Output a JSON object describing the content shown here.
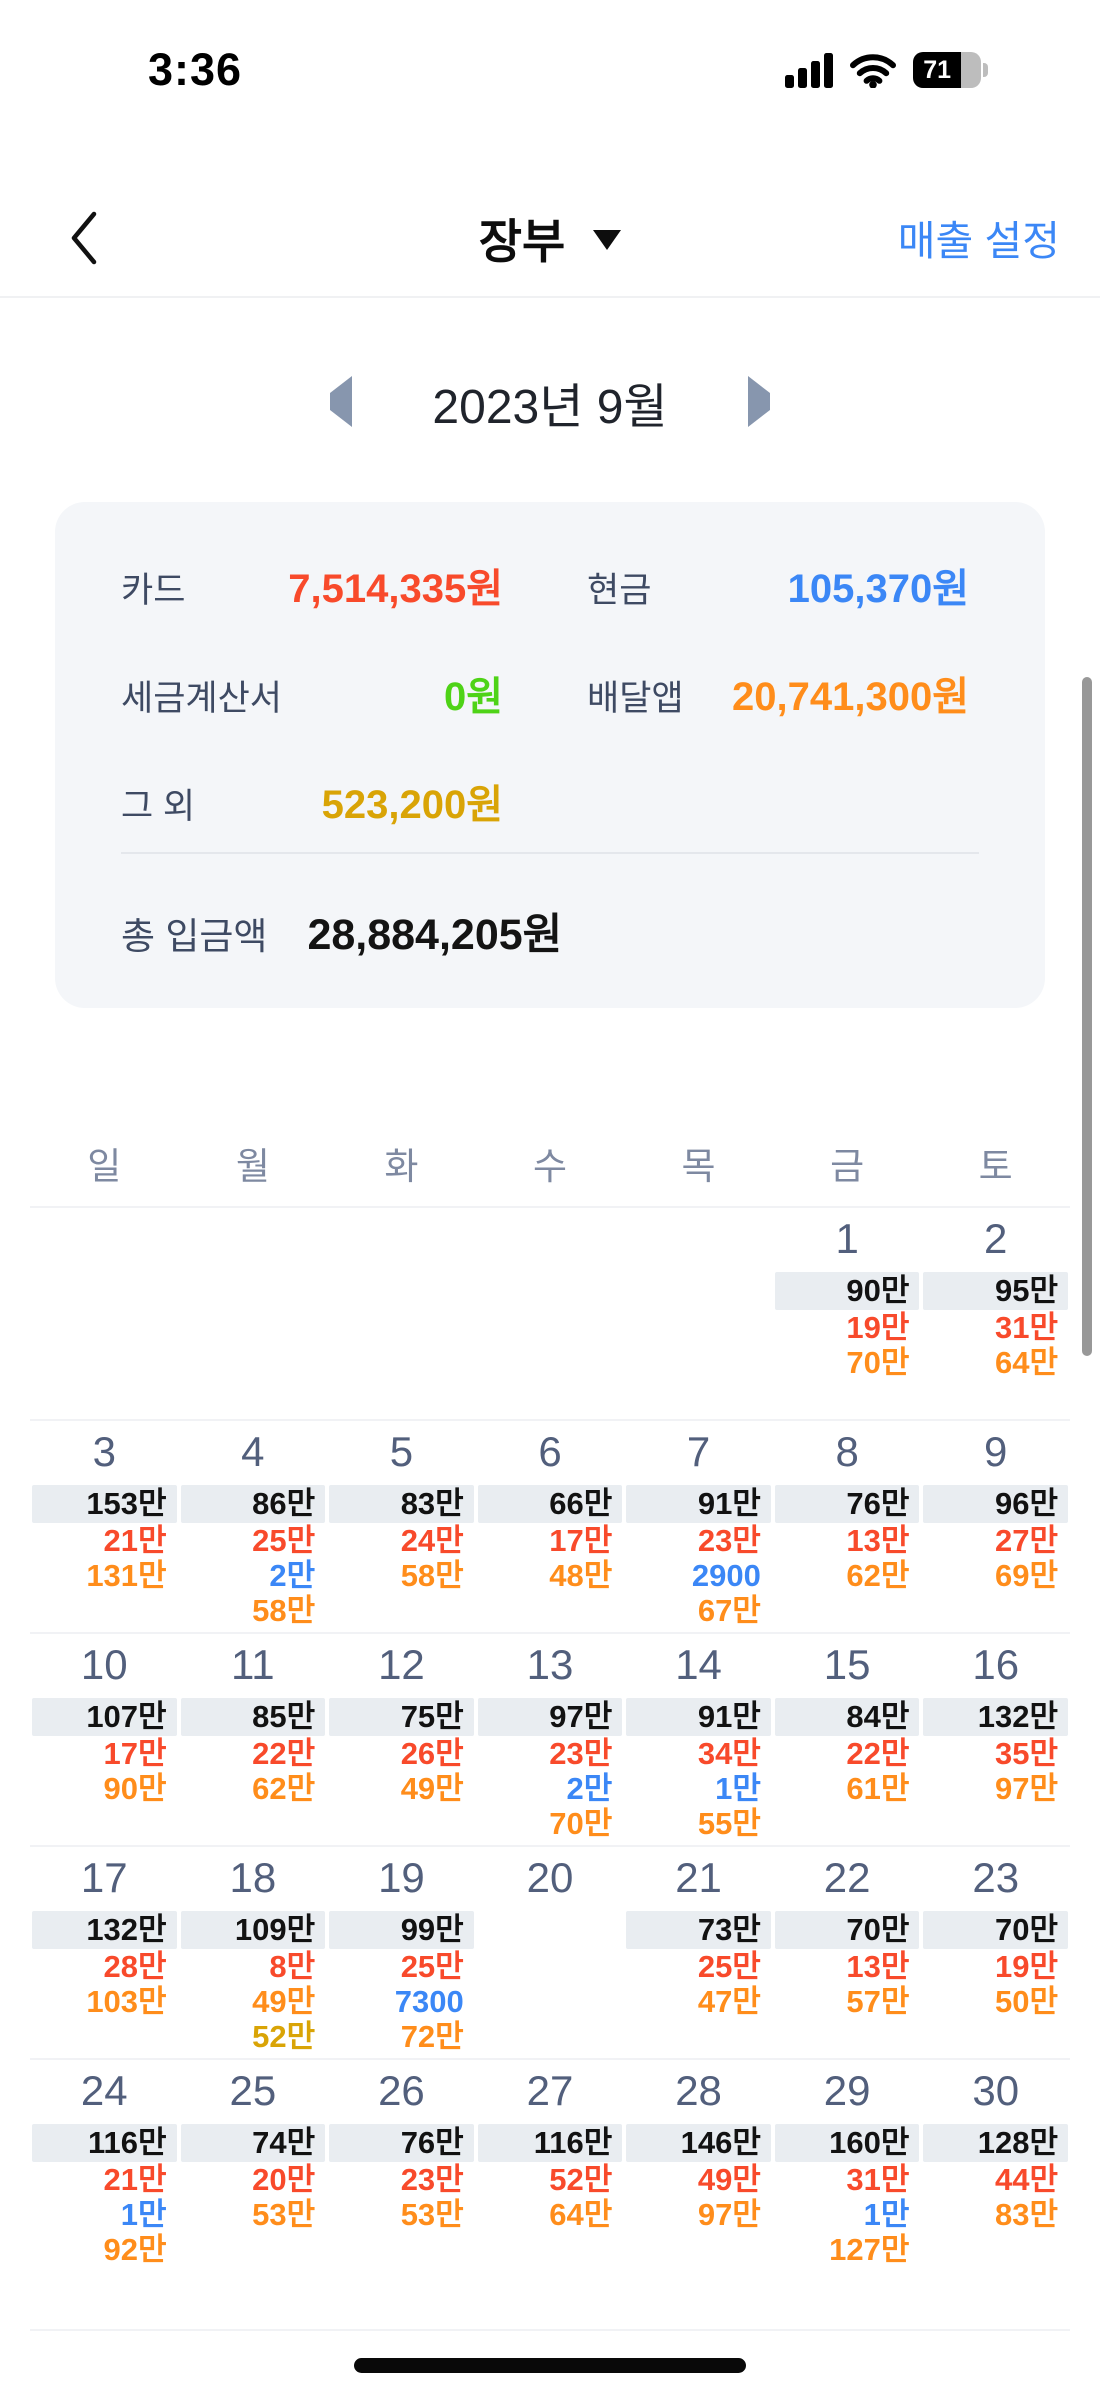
{
  "status_bar": {
    "time": "3:36",
    "battery_percent": "71"
  },
  "nav": {
    "title": "장부",
    "action": "매출 설정"
  },
  "month_selector": {
    "label": "2023년 9월"
  },
  "summary": {
    "items": [
      {
        "label": "카드",
        "value": "7,514,335원",
        "type": "card"
      },
      {
        "label": "현금",
        "value": "105,370원",
        "type": "cash"
      },
      {
        "label": "세금계산서",
        "value": "0원",
        "type": "tax"
      },
      {
        "label": "배달앱",
        "value": "20,741,300원",
        "type": "delivery"
      },
      {
        "label": "그 외",
        "value": "523,200원",
        "type": "other"
      }
    ],
    "total_label": "총 입금액",
    "total_value": "28,884,205원"
  },
  "calendar": {
    "weekdays": [
      "일",
      "월",
      "화",
      "수",
      "목",
      "금",
      "토"
    ],
    "weeks": [
      [
        {
          "day": "",
          "values": []
        },
        {
          "day": "",
          "values": []
        },
        {
          "day": "",
          "values": []
        },
        {
          "day": "",
          "values": []
        },
        {
          "day": "",
          "values": []
        },
        {
          "day": "1",
          "values": [
            {
              "text": "90만",
              "type": "total"
            },
            {
              "text": "19만",
              "type": "card"
            },
            {
              "text": "70만",
              "type": "delivery"
            }
          ]
        },
        {
          "day": "2",
          "values": [
            {
              "text": "95만",
              "type": "total"
            },
            {
              "text": "31만",
              "type": "card"
            },
            {
              "text": "64만",
              "type": "delivery"
            }
          ]
        }
      ],
      [
        {
          "day": "3",
          "values": [
            {
              "text": "153만",
              "type": "total"
            },
            {
              "text": "21만",
              "type": "card"
            },
            {
              "text": "131만",
              "type": "delivery"
            }
          ]
        },
        {
          "day": "4",
          "values": [
            {
              "text": "86만",
              "type": "total"
            },
            {
              "text": "25만",
              "type": "card"
            },
            {
              "text": "2만",
              "type": "cash"
            },
            {
              "text": "58만",
              "type": "delivery"
            }
          ]
        },
        {
          "day": "5",
          "values": [
            {
              "text": "83만",
              "type": "total"
            },
            {
              "text": "24만",
              "type": "card"
            },
            {
              "text": "58만",
              "type": "delivery"
            }
          ]
        },
        {
          "day": "6",
          "values": [
            {
              "text": "66만",
              "type": "total"
            },
            {
              "text": "17만",
              "type": "card"
            },
            {
              "text": "48만",
              "type": "delivery"
            }
          ]
        },
        {
          "day": "7",
          "values": [
            {
              "text": "91만",
              "type": "total"
            },
            {
              "text": "23만",
              "type": "card"
            },
            {
              "text": "2900",
              "type": "cash"
            },
            {
              "text": "67만",
              "type": "delivery"
            }
          ]
        },
        {
          "day": "8",
          "values": [
            {
              "text": "76만",
              "type": "total"
            },
            {
              "text": "13만",
              "type": "card"
            },
            {
              "text": "62만",
              "type": "delivery"
            }
          ]
        },
        {
          "day": "9",
          "values": [
            {
              "text": "96만",
              "type": "total"
            },
            {
              "text": "27만",
              "type": "card"
            },
            {
              "text": "69만",
              "type": "delivery"
            }
          ]
        }
      ],
      [
        {
          "day": "10",
          "values": [
            {
              "text": "107만",
              "type": "total"
            },
            {
              "text": "17만",
              "type": "card"
            },
            {
              "text": "90만",
              "type": "delivery"
            }
          ]
        },
        {
          "day": "11",
          "values": [
            {
              "text": "85만",
              "type": "total"
            },
            {
              "text": "22만",
              "type": "card"
            },
            {
              "text": "62만",
              "type": "delivery"
            }
          ]
        },
        {
          "day": "12",
          "values": [
            {
              "text": "75만",
              "type": "total"
            },
            {
              "text": "26만",
              "type": "card"
            },
            {
              "text": "49만",
              "type": "delivery"
            }
          ]
        },
        {
          "day": "13",
          "values": [
            {
              "text": "97만",
              "type": "total"
            },
            {
              "text": "23만",
              "type": "card"
            },
            {
              "text": "2만",
              "type": "cash"
            },
            {
              "text": "70만",
              "type": "delivery"
            }
          ]
        },
        {
          "day": "14",
          "values": [
            {
              "text": "91만",
              "type": "total"
            },
            {
              "text": "34만",
              "type": "card"
            },
            {
              "text": "1만",
              "type": "cash"
            },
            {
              "text": "55만",
              "type": "delivery"
            }
          ]
        },
        {
          "day": "15",
          "values": [
            {
              "text": "84만",
              "type": "total"
            },
            {
              "text": "22만",
              "type": "card"
            },
            {
              "text": "61만",
              "type": "delivery"
            }
          ]
        },
        {
          "day": "16",
          "values": [
            {
              "text": "132만",
              "type": "total"
            },
            {
              "text": "35만",
              "type": "card"
            },
            {
              "text": "97만",
              "type": "delivery"
            }
          ]
        }
      ],
      [
        {
          "day": "17",
          "values": [
            {
              "text": "132만",
              "type": "total"
            },
            {
              "text": "28만",
              "type": "card"
            },
            {
              "text": "103만",
              "type": "delivery"
            }
          ]
        },
        {
          "day": "18",
          "values": [
            {
              "text": "109만",
              "type": "total"
            },
            {
              "text": "8만",
              "type": "card"
            },
            {
              "text": "49만",
              "type": "delivery"
            },
            {
              "text": "52만",
              "type": "other"
            }
          ]
        },
        {
          "day": "19",
          "values": [
            {
              "text": "99만",
              "type": "total"
            },
            {
              "text": "25만",
              "type": "card"
            },
            {
              "text": "7300",
              "type": "cash"
            },
            {
              "text": "72만",
              "type": "delivery"
            }
          ]
        },
        {
          "day": "20",
          "values": []
        },
        {
          "day": "21",
          "values": [
            {
              "text": "73만",
              "type": "total"
            },
            {
              "text": "25만",
              "type": "card"
            },
            {
              "text": "47만",
              "type": "delivery"
            }
          ]
        },
        {
          "day": "22",
          "values": [
            {
              "text": "70만",
              "type": "total"
            },
            {
              "text": "13만",
              "type": "card"
            },
            {
              "text": "57만",
              "type": "delivery"
            }
          ]
        },
        {
          "day": "23",
          "values": [
            {
              "text": "70만",
              "type": "total"
            },
            {
              "text": "19만",
              "type": "card"
            },
            {
              "text": "50만",
              "type": "delivery"
            }
          ]
        }
      ],
      [
        {
          "day": "24",
          "values": [
            {
              "text": "116만",
              "type": "total"
            },
            {
              "text": "21만",
              "type": "card"
            },
            {
              "text": "1만",
              "type": "cash"
            },
            {
              "text": "92만",
              "type": "delivery"
            }
          ]
        },
        {
          "day": "25",
          "values": [
            {
              "text": "74만",
              "type": "total"
            },
            {
              "text": "20만",
              "type": "card"
            },
            {
              "text": "53만",
              "type": "delivery"
            }
          ]
        },
        {
          "day": "26",
          "values": [
            {
              "text": "76만",
              "type": "total"
            },
            {
              "text": "23만",
              "type": "card"
            },
            {
              "text": "53만",
              "type": "delivery"
            }
          ]
        },
        {
          "day": "27",
          "values": [
            {
              "text": "116만",
              "type": "total"
            },
            {
              "text": "52만",
              "type": "card"
            },
            {
              "text": "64만",
              "type": "delivery"
            }
          ]
        },
        {
          "day": "28",
          "values": [
            {
              "text": "146만",
              "type": "total"
            },
            {
              "text": "49만",
              "type": "card"
            },
            {
              "text": "97만",
              "type": "delivery"
            }
          ]
        },
        {
          "day": "29",
          "values": [
            {
              "text": "160만",
              "type": "total"
            },
            {
              "text": "31만",
              "type": "card"
            },
            {
              "text": "1만",
              "type": "cash"
            },
            {
              "text": "127만",
              "type": "delivery"
            }
          ]
        },
        {
          "day": "30",
          "values": [
            {
              "text": "128만",
              "type": "total"
            },
            {
              "text": "44만",
              "type": "card"
            },
            {
              "text": "83만",
              "type": "delivery"
            }
          ]
        }
      ]
    ]
  },
  "colors": {
    "card": "#f84a2b",
    "cash": "#3b87f6",
    "tax": "#4ed317",
    "delivery": "#ff8d1b",
    "other": "#d9a406",
    "total": "#121212",
    "total_band_bg": "#e9edf1",
    "accent_blue": "#3b87f6"
  }
}
